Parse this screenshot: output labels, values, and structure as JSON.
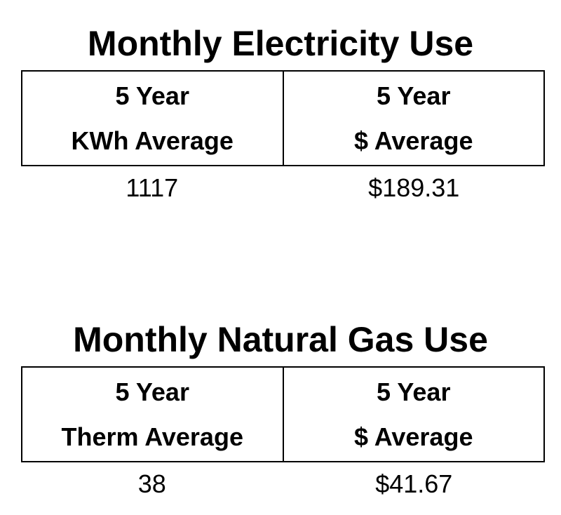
{
  "tables": [
    {
      "title": "Monthly Electricity Use",
      "header": [
        [
          "5 Year",
          "KWh Average"
        ],
        [
          "5 Year",
          "$ Average"
        ]
      ],
      "values": [
        "1117",
        "$189.31"
      ]
    },
    {
      "title": "Monthly Natural Gas Use",
      "header": [
        [
          "5 Year",
          "Therm Average"
        ],
        [
          "5 Year",
          "$ Average"
        ]
      ],
      "values": [
        "38",
        "$41.67"
      ]
    }
  ]
}
